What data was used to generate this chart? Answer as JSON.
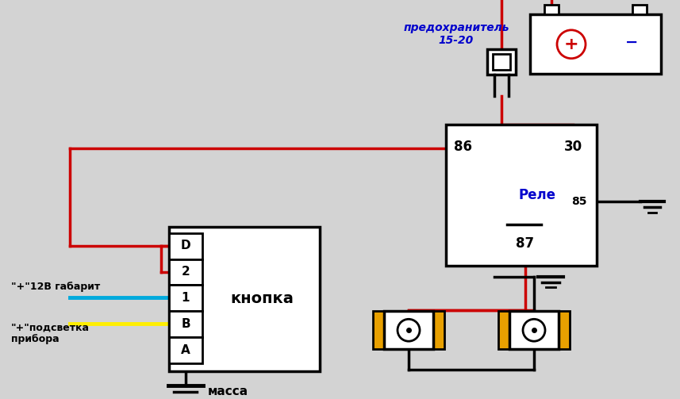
{
  "bg_color": "#d3d3d3",
  "red": "#cc0000",
  "black": "#000000",
  "blue": "#0000cc",
  "cyan": "#00aadd",
  "yellow": "#ffee00",
  "orange": "#e8a000",
  "white": "#ffffff",
  "fuse_label_line1": "предохранитель",
  "fuse_label_line2": "15-20",
  "relay_label": "Реле",
  "button_label": "кнопка",
  "mass_label": "масса",
  "label_86": "86",
  "label_30": "30",
  "label_85": "85",
  "label_87": "87",
  "label_D": "D",
  "label_2": "2",
  "label_1": "1",
  "label_B": "B",
  "label_A": "A",
  "label_plus12": "\"+\"12В габарит",
  "label_podsvетка_1": "\"+\"подсветка",
  "label_podsvетка_2": "прибора",
  "label_plus": "+",
  "label_minus": "−"
}
